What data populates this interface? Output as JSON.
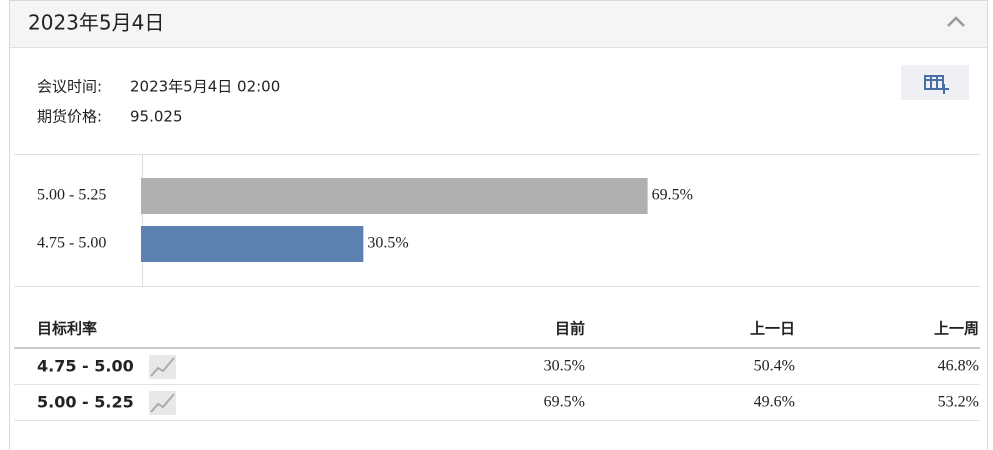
{
  "header": {
    "title": "2023年5月4日"
  },
  "meta": {
    "meeting_label": "会议时间:",
    "meeting_value": "2023年5月4日 02:00",
    "price_label": "期货价格:",
    "price_value": "95.025"
  },
  "chart_data": {
    "type": "bar",
    "orientation": "horizontal",
    "categories": [
      "5.00 - 5.25",
      "4.75 - 5.00"
    ],
    "values": [
      69.5,
      30.5
    ],
    "value_labels": [
      "69.5%",
      "30.5%"
    ],
    "colors": [
      "#b0b0b0",
      "#5b82b0"
    ]
  },
  "table": {
    "columns": [
      "目标利率",
      "目前",
      "上一日",
      "上一周"
    ],
    "rows": [
      [
        "4.75 - 5.00",
        "30.5%",
        "50.4%",
        "46.8%"
      ],
      [
        "5.00 - 5.25",
        "69.5%",
        "49.6%",
        "53.2%"
      ]
    ]
  }
}
